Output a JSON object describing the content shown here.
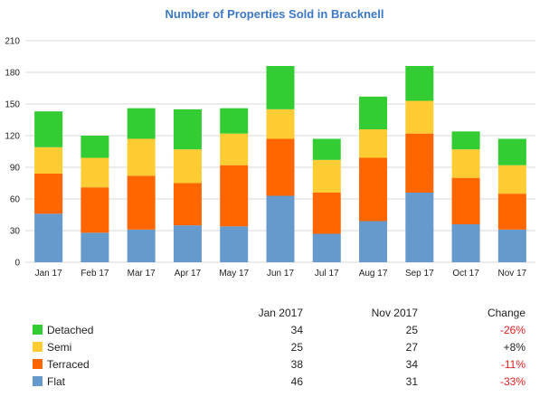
{
  "chart_data": {
    "type": "bar",
    "stacked": true,
    "title": "Number of Properties Sold in Bracknell",
    "categories": [
      "Jan 17",
      "Feb 17",
      "Mar 17",
      "Apr 17",
      "May 17",
      "Jun 17",
      "Jul 17",
      "Aug 17",
      "Sep 17",
      "Oct 17",
      "Nov 17"
    ],
    "series": [
      {
        "name": "Flat",
        "color": "#6699cc",
        "values": [
          46,
          28,
          31,
          35,
          34,
          63,
          27,
          39,
          66,
          36,
          31
        ]
      },
      {
        "name": "Terraced",
        "color": "#ff6600",
        "values": [
          38,
          43,
          51,
          40,
          58,
          54,
          39,
          60,
          56,
          44,
          34
        ]
      },
      {
        "name": "Semi",
        "color": "#ffcc33",
        "values": [
          25,
          28,
          35,
          32,
          30,
          28,
          31,
          27,
          31,
          27,
          27
        ]
      },
      {
        "name": "Detached",
        "color": "#33cc33",
        "values": [
          34,
          21,
          29,
          38,
          24,
          41,
          20,
          31,
          33,
          17,
          25
        ]
      }
    ],
    "ylim": [
      0,
      210
    ],
    "yticks": [
      0,
      30,
      60,
      90,
      120,
      150,
      180,
      210
    ],
    "grid": true,
    "xlabel": "",
    "ylabel": ""
  },
  "summary": {
    "headers": [
      "Jan 2017",
      "Nov 2017",
      "Change"
    ],
    "rows": [
      {
        "name": "Detached",
        "color": "#33cc33",
        "a": "34",
        "b": "25",
        "change": "-26%",
        "negative": true
      },
      {
        "name": "Semi",
        "color": "#ffcc33",
        "a": "25",
        "b": "27",
        "change": "+8%",
        "negative": false
      },
      {
        "name": "Terraced",
        "color": "#ff6600",
        "a": "38",
        "b": "34",
        "change": "-11%",
        "negative": true
      },
      {
        "name": "Flat",
        "color": "#6699cc",
        "a": "46",
        "b": "31",
        "change": "-33%",
        "negative": true
      }
    ]
  }
}
